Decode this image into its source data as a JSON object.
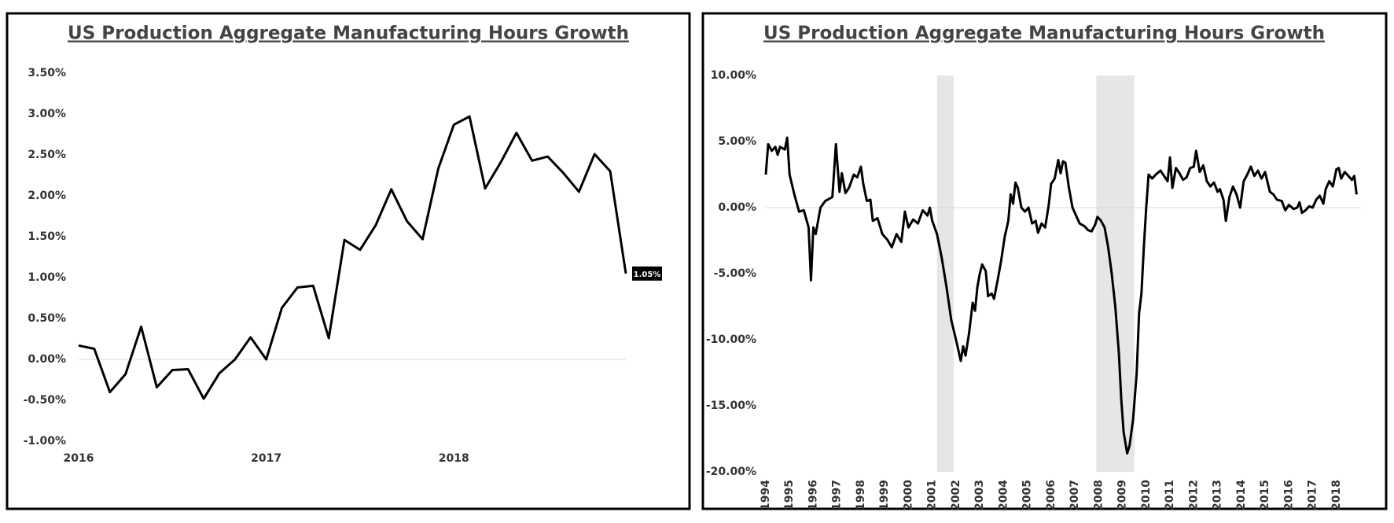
{
  "chart_data": [
    {
      "type": "line",
      "title": "US Production Aggregate Manufacturing Hours Growth",
      "categories": [
        "2016",
        null,
        null,
        null,
        null,
        null,
        null,
        null,
        null,
        null,
        null,
        null,
        "2017",
        null,
        null,
        null,
        null,
        null,
        null,
        null,
        null,
        null,
        null,
        null,
        "2018",
        null,
        null,
        null,
        null,
        null,
        null,
        null,
        null,
        null,
        null,
        null
      ],
      "values": [
        0.17,
        0.13,
        -0.4,
        -0.18,
        0.4,
        -0.34,
        -0.13,
        -0.12,
        -0.48,
        -0.17,
        0.0,
        0.27,
        0.0,
        0.63,
        0.88,
        0.9,
        0.26,
        1.46,
        1.34,
        1.64,
        2.08,
        1.69,
        1.47,
        2.33,
        2.87,
        2.97,
        2.09,
        2.41,
        2.77,
        2.43,
        2.48,
        2.28,
        2.05,
        2.51,
        2.3,
        1.05
      ],
      "value_labels": [
        null,
        null,
        null,
        null,
        null,
        null,
        null,
        null,
        null,
        null,
        null,
        null,
        null,
        null,
        null,
        null,
        null,
        null,
        null,
        null,
        null,
        null,
        null,
        null,
        null,
        null,
        null,
        null,
        null,
        null,
        null,
        null,
        null,
        null,
        null,
        "1.05%"
      ],
      "color": "#000000",
      "ylim": [
        -1,
        3.5
      ],
      "yticks": [
        {
          "value": -1,
          "label": "-1.00%"
        },
        {
          "value": -0.5,
          "label": "-0.50%"
        },
        {
          "value": 0,
          "label": "0.00%"
        },
        {
          "value": 0.5,
          "label": "0.50%"
        },
        {
          "value": 1,
          "label": "1.00%"
        },
        {
          "value": 1.5,
          "label": "1.50%"
        },
        {
          "value": 2,
          "label": "2.00%"
        },
        {
          "value": 2.5,
          "label": "2.50%"
        },
        {
          "value": 3,
          "label": "3.00%"
        },
        {
          "value": 3.5,
          "label": "3.50%"
        }
      ],
      "zero_line": true
    },
    {
      "type": "line",
      "title": "US Production Aggregate Manufacturing Hours Growth",
      "x": [
        1994.0,
        1994.1,
        1994.25,
        1994.4,
        1994.5,
        1994.6,
        1994.8,
        1994.9,
        1995.0,
        1995.2,
        1995.4,
        1995.6,
        1995.8,
        1995.9,
        1996.0,
        1996.1,
        1996.3,
        1996.5,
        1996.8,
        1996.95,
        1997.1,
        1997.2,
        1997.35,
        1997.5,
        1997.7,
        1997.85,
        1998.0,
        1998.1,
        1998.25,
        1998.4,
        1998.5,
        1998.7,
        1998.9,
        1999.1,
        1999.3,
        1999.5,
        1999.7,
        1999.85,
        2000.0,
        2000.2,
        2000.4,
        2000.6,
        2000.8,
        2000.9,
        2001.0,
        2001.2,
        2001.4,
        2001.6,
        2001.8,
        2002.0,
        2002.2,
        2002.3,
        2002.4,
        2002.55,
        2002.7,
        2002.8,
        2002.9,
        2003.0,
        2003.1,
        2003.25,
        2003.35,
        2003.5,
        2003.6,
        2003.75,
        2003.9,
        2004.05,
        2004.2,
        2004.3,
        2004.4,
        2004.5,
        2004.6,
        2004.75,
        2004.9,
        2005.05,
        2005.2,
        2005.35,
        2005.45,
        2005.6,
        2005.75,
        2005.9,
        2006.0,
        2006.15,
        2006.3,
        2006.4,
        2006.5,
        2006.6,
        2006.75,
        2006.9,
        2007.05,
        2007.2,
        2007.4,
        2007.55,
        2007.7,
        2007.85,
        2007.95,
        2008.1,
        2008.25,
        2008.4,
        2008.55,
        2008.7,
        2008.85,
        2008.95,
        2009.05,
        2009.2,
        2009.3,
        2009.45,
        2009.6,
        2009.7,
        2009.8,
        2009.9,
        2010.0,
        2010.1,
        2010.25,
        2010.4,
        2010.6,
        2010.75,
        2010.9,
        2011.0,
        2011.1,
        2011.25,
        2011.4,
        2011.55,
        2011.7,
        2011.85,
        2012.0,
        2012.1,
        2012.25,
        2012.4,
        2012.55,
        2012.7,
        2012.85,
        2013.0,
        2013.1,
        2013.25,
        2013.35,
        2013.5,
        2013.65,
        2013.8,
        2013.95,
        2014.1,
        2014.25,
        2014.4,
        2014.55,
        2014.7,
        2014.85,
        2015.0,
        2015.2,
        2015.35,
        2015.5,
        2015.7,
        2015.85,
        2016.0,
        2016.2,
        2016.35,
        2016.45,
        2016.55,
        2016.7,
        2016.85,
        2017.0,
        2017.15,
        2017.3,
        2017.45,
        2017.55,
        2017.7,
        2017.85,
        2018.0,
        2018.1,
        2018.2,
        2018.35,
        2018.5,
        2018.65,
        2018.75,
        2018.85
      ],
      "values": [
        2.5,
        4.8,
        4.3,
        4.6,
        4.0,
        4.6,
        4.4,
        5.3,
        2.5,
        1.0,
        -0.3,
        -0.2,
        -1.5,
        -5.5,
        -1.5,
        -2.0,
        0.0,
        0.5,
        0.8,
        4.8,
        1.2,
        2.6,
        1.1,
        1.5,
        2.5,
        2.3,
        3.1,
        1.8,
        0.5,
        0.6,
        -1.0,
        -0.8,
        -2.0,
        -2.4,
        -3.0,
        -2.0,
        -2.6,
        -0.3,
        -1.5,
        -0.9,
        -1.2,
        -0.2,
        -0.6,
        0.0,
        -1.0,
        -2.0,
        -3.8,
        -6.0,
        -8.5,
        -10.0,
        -11.6,
        -10.5,
        -11.2,
        -9.5,
        -7.2,
        -7.8,
        -6.0,
        -5.0,
        -4.3,
        -4.8,
        -6.7,
        -6.5,
        -6.9,
        -5.5,
        -4.0,
        -2.2,
        -1.0,
        1.0,
        0.3,
        1.9,
        1.5,
        0.0,
        -0.3,
        0.0,
        -1.2,
        -1.0,
        -1.9,
        -1.2,
        -1.5,
        0.2,
        1.8,
        2.2,
        3.6,
        2.6,
        3.5,
        3.4,
        1.5,
        0.0,
        -0.6,
        -1.2,
        -1.4,
        -1.7,
        -1.8,
        -1.3,
        -0.7,
        -1.0,
        -1.5,
        -3.0,
        -5.0,
        -7.5,
        -11.0,
        -14.5,
        -17.0,
        -18.6,
        -18.0,
        -16.0,
        -12.5,
        -8.0,
        -6.5,
        -3.0,
        0.0,
        2.5,
        2.2,
        2.5,
        2.8,
        2.4,
        2.0,
        3.8,
        1.5,
        3.0,
        2.6,
        2.1,
        2.3,
        3.0,
        3.1,
        4.3,
        2.7,
        3.2,
        2.0,
        1.6,
        1.9,
        1.2,
        1.4,
        0.6,
        -1.0,
        0.8,
        1.6,
        1.0,
        0.0,
        2.0,
        2.5,
        3.1,
        2.4,
        2.8,
        2.2,
        2.7,
        1.2,
        1.0,
        0.6,
        0.5,
        -0.2,
        0.2,
        -0.1,
        0.0,
        0.4,
        -0.4,
        -0.2,
        0.1,
        0.0,
        0.6,
        0.9,
        0.3,
        1.4,
        2.0,
        1.6,
        2.9,
        3.0,
        2.2,
        2.7,
        2.4,
        2.1,
        2.4,
        1.0
      ],
      "color": "#000000",
      "shaded_regions": [
        [
          2001.2,
          2001.9
        ],
        [
          2007.9,
          2009.5
        ]
      ],
      "shade_color": "#e6e6e6",
      "xlim": [
        1994,
        2019
      ],
      "xticks": [
        1994,
        1995,
        1996,
        1997,
        1998,
        1999,
        2000,
        2001,
        2002,
        2003,
        2004,
        2005,
        2006,
        2007,
        2008,
        2009,
        2010,
        2011,
        2012,
        2013,
        2014,
        2015,
        2016,
        2017,
        2018
      ],
      "ylim": [
        -20,
        10
      ],
      "yticks": [
        {
          "value": -20,
          "label": "-20.00%"
        },
        {
          "value": -15,
          "label": "-15.00%"
        },
        {
          "value": -10,
          "label": "-10.00%"
        },
        {
          "value": -5,
          "label": "-5.00%"
        },
        {
          "value": 0,
          "label": "0.00%"
        },
        {
          "value": 5,
          "label": "5.00%"
        },
        {
          "value": 10,
          "label": "10.00%"
        }
      ],
      "zero_line": true
    }
  ]
}
